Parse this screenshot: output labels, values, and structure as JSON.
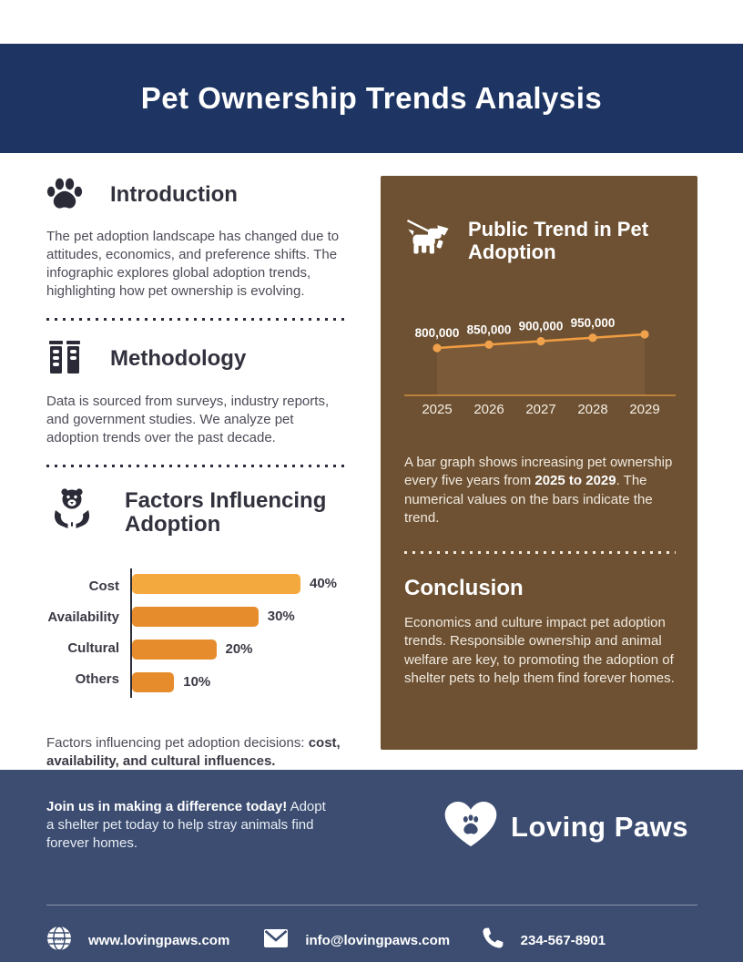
{
  "page": {
    "title": "Pet Ownership Trends Analysis"
  },
  "colors": {
    "header_navy": "#1e3563",
    "footer_navy": "#3c4d71",
    "card_brown": "#6e5132",
    "accent_orange_light": "#f4a93f",
    "accent_orange": "#e78c2c",
    "line_orange": "#f09c42",
    "ink_dark": "#32323e"
  },
  "icons": {
    "intro": "paw-icon",
    "methodology": "binders-icon",
    "factors": "animal-in-hands-icon",
    "trend": "dog-leash-icon",
    "brand": "heart-paw-icon",
    "website": "globe-icon",
    "email": "envelope-icon",
    "phone": "phone-icon"
  },
  "intro": {
    "heading": "Introduction",
    "body": "The pet adoption landscape has changed due to attitudes, economics, and preference shifts. The infographic explores global adoption trends, highlighting how pet ownership is evolving."
  },
  "methodology": {
    "heading": "Methodology",
    "body": "Data is sourced from surveys, industry reports, and government studies. We analyze pet adoption trends over the past decade."
  },
  "factors": {
    "heading": "Factors Influencing Adoption",
    "caption_regular": "Factors influencing pet adoption decisions: ",
    "caption_bold": "cost, availability, and cultural influences."
  },
  "trend_card": {
    "heading": "Public Trend in Pet Adoption",
    "body_pre": "A bar graph shows increasing pet ownership every five years from ",
    "body_bold": "2025 to 2029",
    "body_post": ". The numerical values on the bars indicate the trend."
  },
  "conclusion": {
    "heading": "Conclusion",
    "body": "Economics and culture impact pet adoption trends. Responsible ownership and animal welfare are key, to promoting the adoption of shelter pets to help them find forever homes."
  },
  "footer": {
    "cta_bold": "Join us in making a difference today!",
    "cta_regular": " Adopt a shelter pet today to help stray animals find forever homes.",
    "brand": "Loving Paws",
    "website": "www.lovingpaws.com",
    "email": "info@lovingpaws.com",
    "phone": "234-567-8901"
  },
  "chart_data": [
    {
      "type": "bar",
      "orientation": "horizontal",
      "title": "Factors Influencing Adoption",
      "categories": [
        "Cost",
        "Availability",
        "Cultural",
        "Others"
      ],
      "values": [
        40,
        30,
        20,
        10
      ],
      "value_labels": [
        "40%",
        "30%",
        "20%",
        "10%"
      ],
      "bar_colors": [
        "#f4a93f",
        "#e78c2c",
        "#e78c2c",
        "#e78c2c"
      ],
      "xlabel": "",
      "ylabel": "",
      "xlim": [
        0,
        45
      ],
      "grid": false,
      "legend": false
    },
    {
      "type": "area",
      "title": "Public Trend in Pet Adoption",
      "x": [
        2025,
        2026,
        2027,
        2028,
        2029
      ],
      "values": [
        800000,
        850000,
        900000,
        950000,
        1000000
      ],
      "value_labels": [
        "800,000",
        "850,000",
        "900,000",
        "950,000",
        ""
      ],
      "line_color": "#f09c42",
      "dot_color": "#f0a14b",
      "fill_color": "#7a5a39",
      "axis_color": "#d2913e",
      "xlabel": "",
      "ylabel": "",
      "ylim": [
        0,
        1000000
      ],
      "grid": false,
      "legend": false
    }
  ]
}
